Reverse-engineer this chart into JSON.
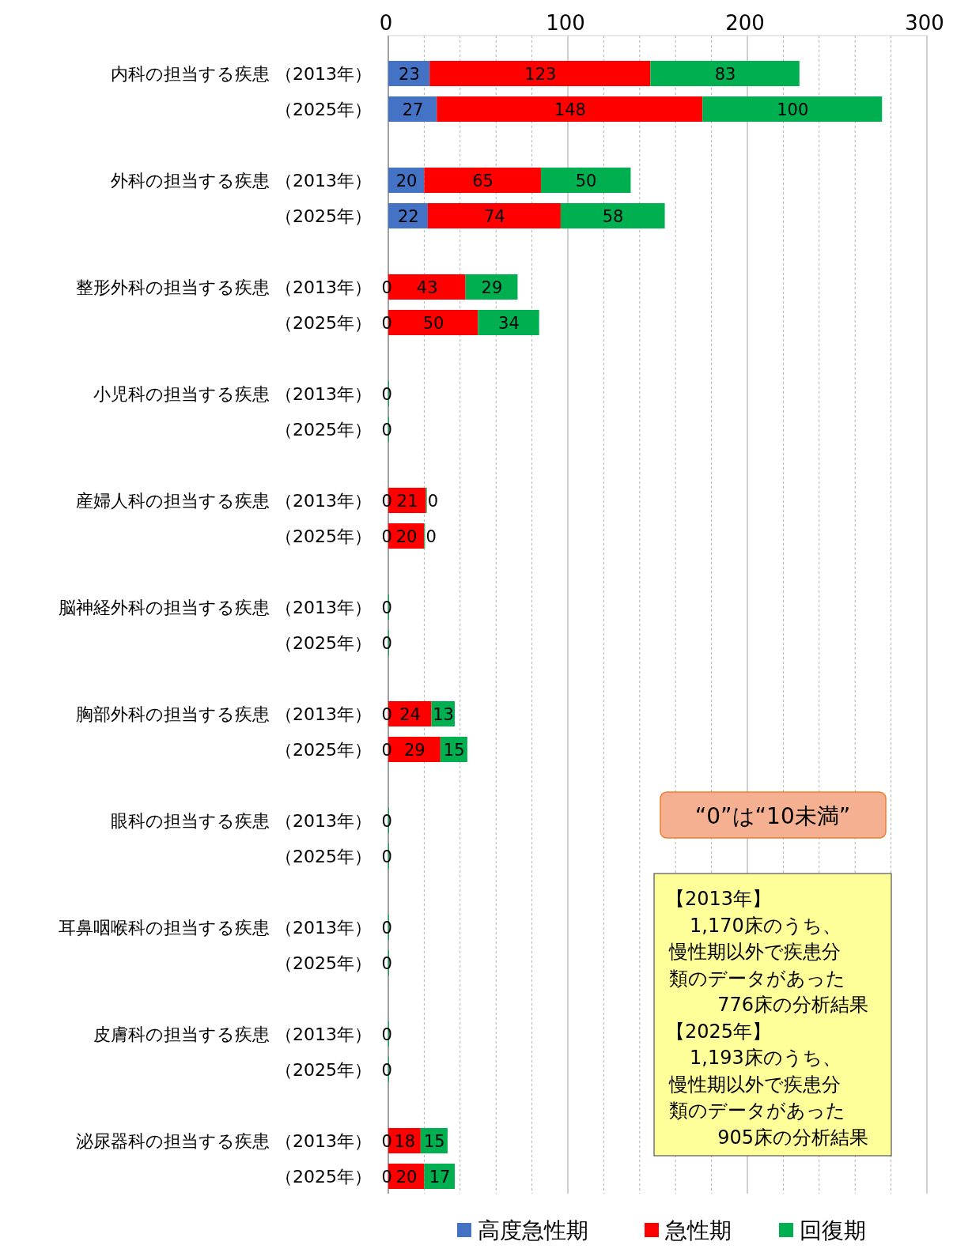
{
  "chart_data": {
    "type": "bar",
    "orientation": "horizontal",
    "stacked": true,
    "categories": [
      "内科の担当する疾患 （2013年）",
      "（2025年）",
      "外科の担当する疾患 （2013年）",
      "（2025年）",
      "整形外科の担当する疾患 （2013年）",
      "（2025年）",
      "小児科の担当する疾患 （2013年）",
      "（2025年）",
      "産婦人科の担当する疾患 （2013年）",
      "（2025年）",
      "脳神経外科の担当する疾患 （2013年）",
      "（2025年）",
      "胸部外科の担当する疾患 （2013年）",
      "（2025年）",
      "眼科の担当する疾患 （2013年）",
      "（2025年）",
      "耳鼻咽喉科の担当する疾患 （2013年）",
      "（2025年）",
      "皮膚科の担当する疾患 （2013年）",
      "（2025年）",
      "泌尿器科の担当する疾患 （2013年）",
      "（2025年）"
    ],
    "series": [
      {
        "name": "高度急性期",
        "color": "#4472c4",
        "values": [
          23,
          27,
          20,
          22,
          0,
          0,
          0,
          0,
          0,
          0,
          0,
          0,
          0,
          0,
          0,
          0,
          0,
          0,
          0,
          0,
          0,
          0
        ],
        "value_labels": [
          "23",
          "27",
          "20",
          "22",
          "0",
          "0",
          "0",
          "0",
          "0",
          "0",
          "0",
          "0",
          "0",
          "0",
          "0",
          "0",
          "0",
          "0",
          "0",
          "0",
          "0",
          "0"
        ]
      },
      {
        "name": "急性期",
        "color": "#ff0000",
        "values": [
          123,
          148,
          65,
          74,
          43,
          50,
          0,
          0,
          21,
          20,
          0,
          0,
          24,
          29,
          0,
          0,
          0,
          0,
          0,
          0,
          18,
          20
        ],
        "value_labels": [
          "123",
          "148",
          "65",
          "74",
          "43",
          "50",
          null,
          null,
          "21",
          "20",
          null,
          null,
          "24",
          "29",
          null,
          null,
          null,
          null,
          null,
          null,
          "18",
          "20"
        ]
      },
      {
        "name": "回復期",
        "color": "#00b050",
        "values": [
          83,
          100,
          50,
          58,
          29,
          34,
          0,
          0,
          0,
          0,
          0,
          0,
          13,
          15,
          0,
          0,
          0,
          0,
          0,
          0,
          15,
          17
        ],
        "value_labels": [
          "83",
          "100",
          "50",
          "58",
          "29",
          "34",
          null,
          null,
          "0",
          "0",
          null,
          null,
          "13",
          "15",
          null,
          null,
          null,
          null,
          null,
          null,
          "15",
          "17"
        ]
      }
    ],
    "xlim": [
      0,
      300
    ],
    "xticks": [
      0,
      {
        "value": 20,
        "label": null
      },
      {
        "value": 40,
        "label": null
      },
      {
        "value": 60,
        "label": null
      },
      {
        "value": 80,
        "label": null
      },
      100,
      {
        "value": 120,
        "label": null
      },
      {
        "value": 140,
        "label": null
      },
      {
        "value": 160,
        "label": null
      },
      {
        "value": 180,
        "label": null
      },
      200,
      {
        "value": 220,
        "label": null
      },
      {
        "value": 240,
        "label": null
      },
      {
        "value": 260,
        "label": null
      },
      {
        "value": 280,
        "label": null
      },
      300
    ],
    "grid": "x",
    "legend": "bottom",
    "annotations": [
      "“0”は“10未満”",
      "【2013年】",
      "1,170床のうち、慢性期以外で疾患分類のデータがあった776床の分析結果",
      "【2025年】",
      "1,193床のうち、慢性期以外で疾患分類のデータがあった905床の分析結果"
    ]
  }
}
